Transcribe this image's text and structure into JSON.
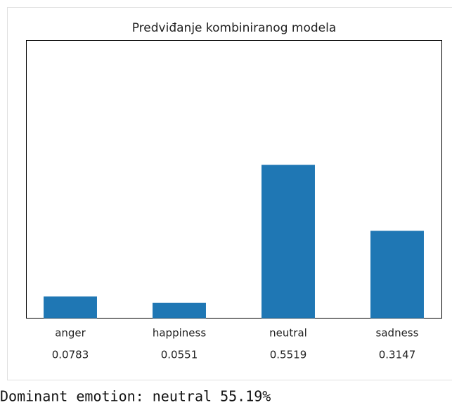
{
  "chart_data": {
    "type": "bar",
    "title": "Predviđanje kombiniranog modela",
    "categories": [
      "anger",
      "happiness",
      "neutral",
      "sadness"
    ],
    "values": [
      0.0783,
      0.0551,
      0.5519,
      0.3147
    ],
    "color": "#1f77b4",
    "ylim": [
      0,
      1
    ]
  },
  "output_text": "Dominant emotion: neutral 55.19%"
}
